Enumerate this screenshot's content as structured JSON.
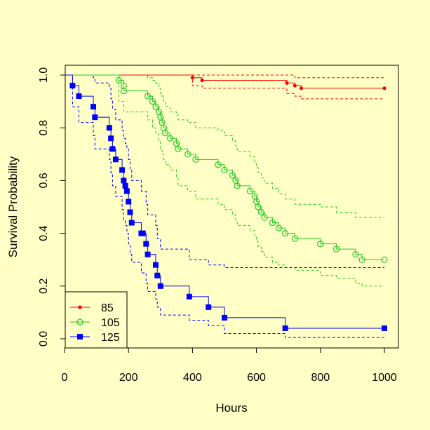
{
  "chart_data": {
    "type": "line",
    "title": "",
    "xlabel": "Hours",
    "ylabel": "Survival Probability",
    "xlim": [
      0,
      1000
    ],
    "ylim": [
      0,
      1
    ],
    "xticks": [
      "0",
      "200",
      "400",
      "600",
      "800",
      "1000"
    ],
    "yticks": [
      "0.0",
      "0.2",
      "0.4",
      "0.6",
      "0.8",
      "1.0"
    ],
    "legend_position": "bottom-left",
    "grid": false,
    "series": [
      {
        "name": "85",
        "color": "#FF0000",
        "marker": "dot",
        "step_times": [
          400,
          430,
          695,
          720,
          740,
          1000
        ],
        "survival": [
          0.99,
          0.98,
          0.97,
          0.96,
          0.95,
          0.95
        ],
        "lower_ci": [
          0.96,
          0.95,
          0.93,
          0.92,
          0.91,
          0.91
        ],
        "upper_ci": [
          1.0,
          1.0,
          1.0,
          0.99,
          0.99,
          0.99
        ]
      },
      {
        "name": "105",
        "color": "#22CC22",
        "marker": "open-circle",
        "step_times": [
          170,
          185,
          185,
          260,
          275,
          285,
          295,
          300,
          305,
          310,
          315,
          330,
          350,
          355,
          385,
          410,
          480,
          500,
          525,
          535,
          540,
          580,
          595,
          600,
          605,
          615,
          625,
          650,
          670,
          690,
          720,
          800,
          850,
          910,
          930,
          1000
        ],
        "survival": [
          0.98,
          0.96,
          0.94,
          0.92,
          0.9,
          0.88,
          0.86,
          0.84,
          0.82,
          0.8,
          0.78,
          0.76,
          0.74,
          0.72,
          0.7,
          0.68,
          0.66,
          0.64,
          0.62,
          0.6,
          0.58,
          0.56,
          0.54,
          0.52,
          0.5,
          0.48,
          0.46,
          0.44,
          0.42,
          0.4,
          0.38,
          0.36,
          0.34,
          0.32,
          0.3,
          0.3
        ],
        "lower_ci": [
          0.9,
          0.88,
          0.86,
          0.83,
          0.8,
          0.78,
          0.75,
          0.72,
          0.7,
          0.68,
          0.66,
          0.64,
          0.61,
          0.58,
          0.56,
          0.53,
          0.51,
          0.49,
          0.47,
          0.45,
          0.43,
          0.41,
          0.39,
          0.37,
          0.35,
          0.33,
          0.31,
          0.29,
          0.28,
          0.27,
          0.26,
          0.24,
          0.23,
          0.21,
          0.2,
          0.2
        ],
        "upper_ci": [
          1.0,
          1.0,
          1.0,
          0.99,
          0.98,
          0.97,
          0.95,
          0.93,
          0.92,
          0.9,
          0.88,
          0.86,
          0.85,
          0.83,
          0.82,
          0.8,
          0.79,
          0.77,
          0.75,
          0.73,
          0.71,
          0.69,
          0.67,
          0.65,
          0.63,
          0.61,
          0.59,
          0.57,
          0.55,
          0.53,
          0.51,
          0.5,
          0.48,
          0.46,
          0.46,
          0.46
        ]
      },
      {
        "name": "125",
        "color": "#0000FF",
        "marker": "filled-square",
        "step_times": [
          25,
          45,
          90,
          95,
          140,
          145,
          150,
          160,
          180,
          185,
          190,
          195,
          200,
          205,
          210,
          240,
          245,
          255,
          260,
          285,
          290,
          300,
          390,
          450,
          500,
          690,
          1000
        ],
        "survival": [
          0.96,
          0.92,
          0.88,
          0.84,
          0.8,
          0.76,
          0.72,
          0.68,
          0.64,
          0.6,
          0.58,
          0.56,
          0.52,
          0.48,
          0.44,
          0.4,
          0.4,
          0.36,
          0.32,
          0.28,
          0.24,
          0.2,
          0.16,
          0.12,
          0.08,
          0.04,
          0.04
        ],
        "lower_ci": [
          0.88,
          0.82,
          0.77,
          0.72,
          0.68,
          0.63,
          0.58,
          0.54,
          0.49,
          0.45,
          0.43,
          0.4,
          0.36,
          0.32,
          0.29,
          0.25,
          0.25,
          0.21,
          0.18,
          0.15,
          0.12,
          0.09,
          0.07,
          0.05,
          0.02,
          0.005,
          0.005
        ],
        "upper_ci": [
          1.0,
          1.0,
          0.99,
          0.97,
          0.95,
          0.91,
          0.87,
          0.83,
          0.79,
          0.76,
          0.74,
          0.72,
          0.68,
          0.64,
          0.6,
          0.56,
          0.56,
          0.51,
          0.47,
          0.43,
          0.38,
          0.34,
          0.3,
          0.28,
          0.27,
          0.27,
          0.27
        ]
      }
    ]
  }
}
